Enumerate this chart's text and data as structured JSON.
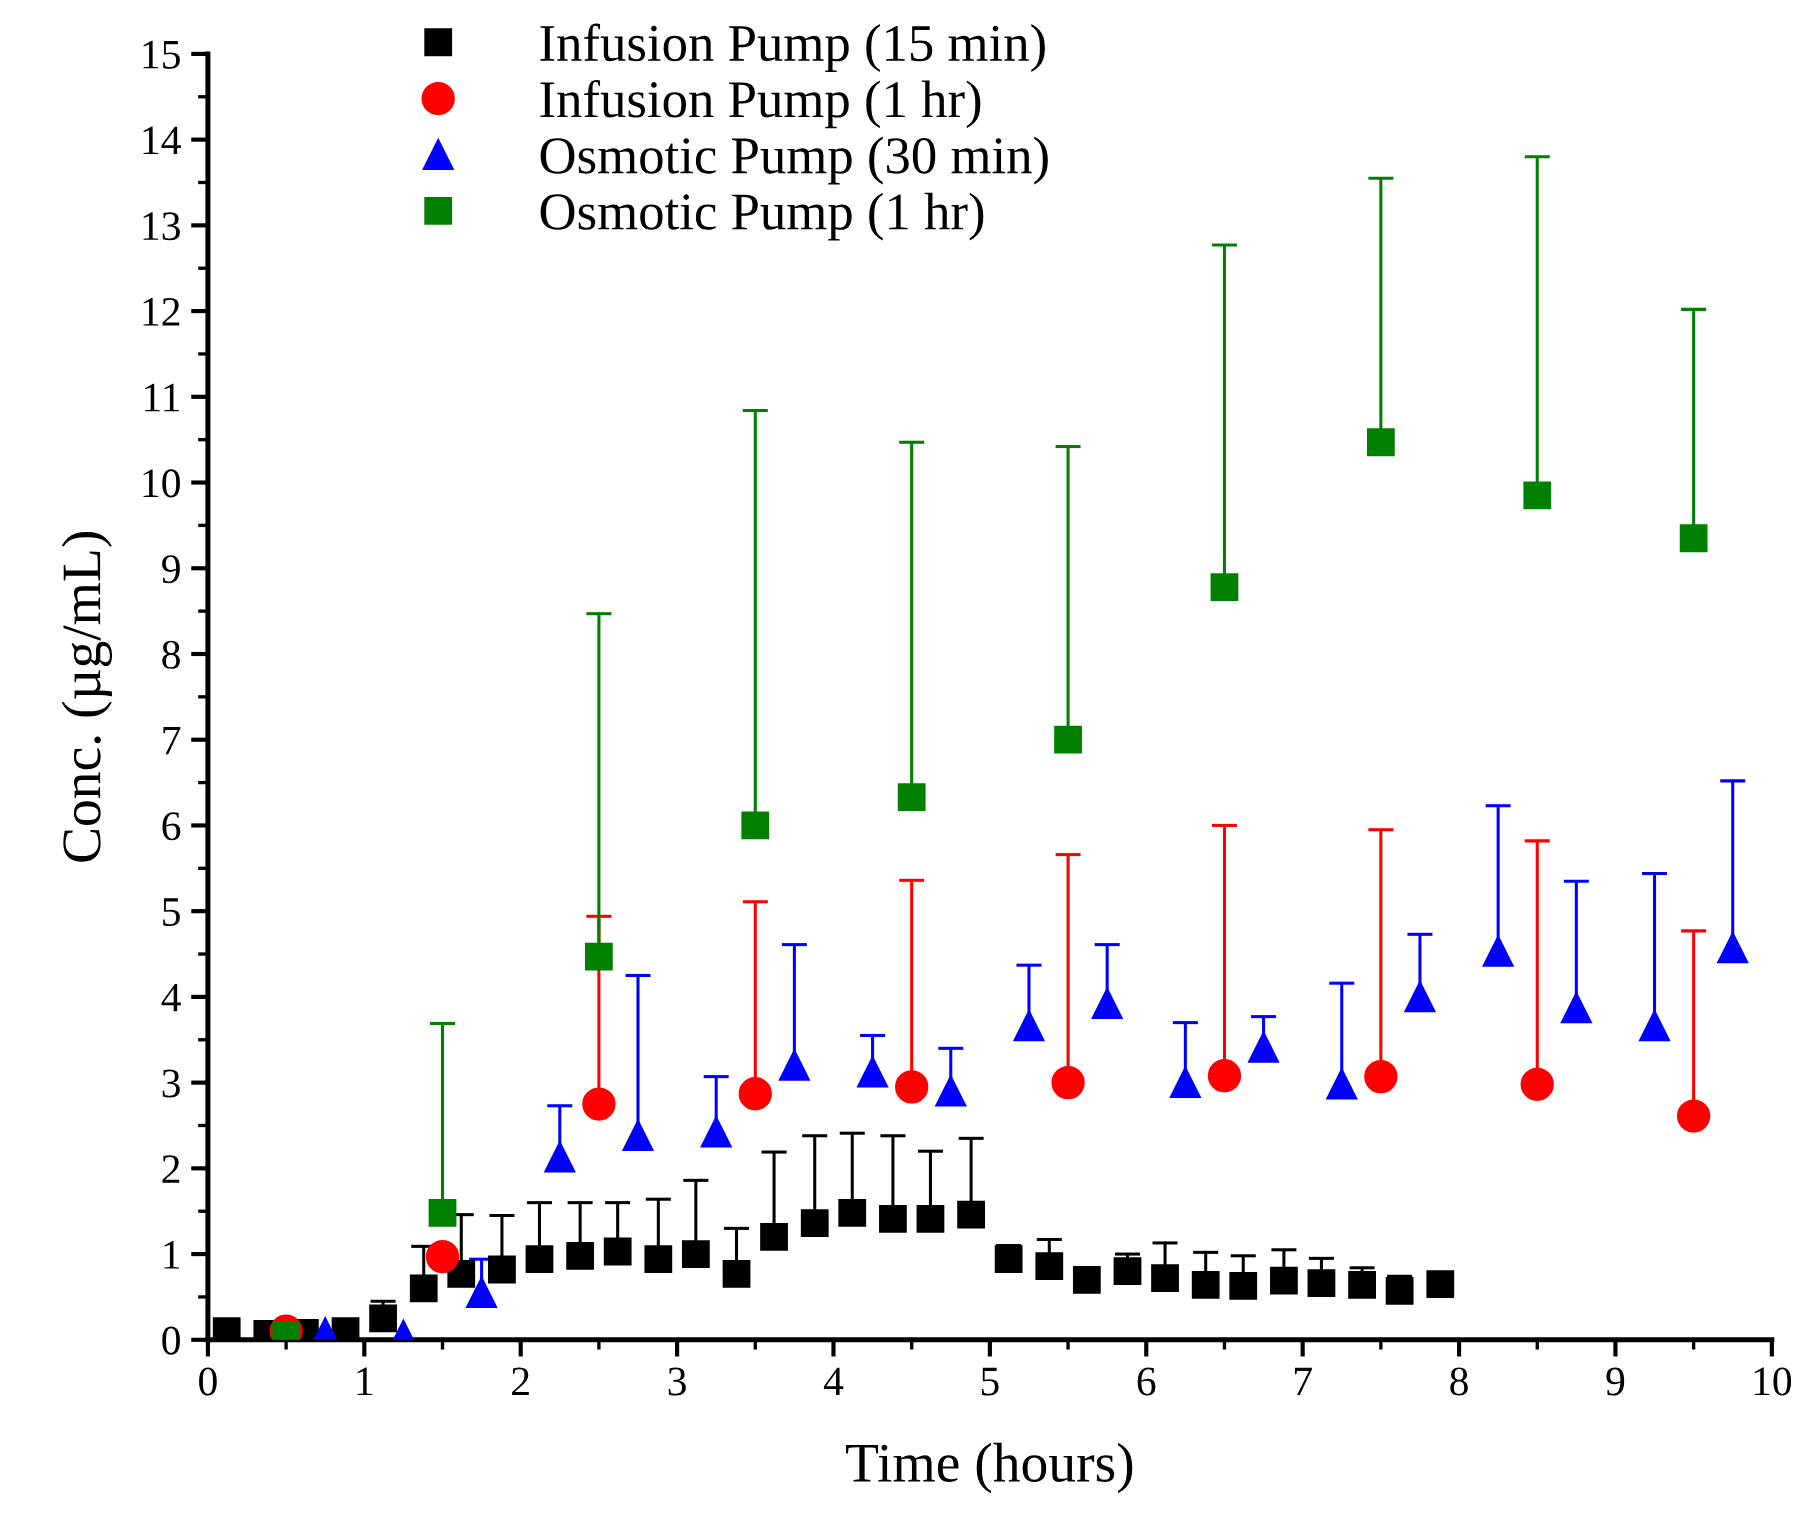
{
  "chart_data": {
    "type": "scatter",
    "xlabel": "Time (hours)",
    "ylabel": "Conc. (µg/mL)",
    "xlim": [
      0,
      10
    ],
    "xticks": [
      0,
      1,
      2,
      3,
      4,
      5,
      6,
      7,
      8,
      9,
      10
    ],
    "ylim": [
      0,
      15
    ],
    "yticks": [
      0,
      1,
      2,
      3,
      4,
      5,
      6,
      7,
      8,
      9,
      10,
      11,
      12,
      13,
      14,
      15
    ],
    "grid": false,
    "legend": "top left",
    "series": [
      {
        "name": "Infusion Pump (15 min)",
        "color": "#000000",
        "marker": "square",
        "x": [
          0.12,
          0.38,
          0.62,
          0.88,
          1.12,
          1.38,
          1.62,
          1.88,
          2.12,
          2.38,
          2.62,
          2.88,
          3.12,
          3.38,
          3.62,
          3.88,
          4.12,
          4.38,
          4.62,
          4.88,
          5.12,
          5.38,
          5.62,
          5.88,
          6.12,
          6.38,
          6.62,
          6.88,
          7.12,
          7.38,
          7.62,
          7.88
        ],
        "values": [
          0.1,
          0.07,
          0.08,
          0.1,
          0.25,
          0.6,
          0.77,
          0.82,
          0.94,
          0.98,
          1.03,
          0.94,
          1.0,
          0.77,
          1.2,
          1.36,
          1.48,
          1.41,
          1.41,
          1.46,
          0.94,
          0.86,
          0.7,
          0.8,
          0.72,
          0.64,
          0.63,
          0.69,
          0.66,
          0.64,
          0.57,
          0.65
        ],
        "errors": [
          null,
          null,
          null,
          null,
          [
            0.25,
            0.45
          ],
          [
            0.6,
            1.09
          ],
          [
            0.77,
            1.46
          ],
          [
            0.82,
            1.45
          ],
          [
            0.94,
            1.6
          ],
          [
            0.98,
            1.6
          ],
          [
            1.03,
            1.6
          ],
          [
            0.94,
            1.64
          ],
          [
            1.0,
            1.86
          ],
          [
            0.77,
            1.3
          ],
          [
            1.2,
            2.19
          ],
          [
            1.36,
            2.38
          ],
          [
            1.48,
            2.41
          ],
          [
            1.41,
            2.38
          ],
          [
            1.41,
            2.2
          ],
          [
            1.46,
            2.35
          ],
          [
            0.94,
            1.1
          ],
          [
            0.86,
            1.17
          ],
          null,
          [
            0.8,
            1.0
          ],
          [
            0.72,
            1.13
          ],
          [
            0.64,
            1.02
          ],
          [
            0.63,
            0.98
          ],
          [
            0.69,
            1.05
          ],
          [
            0.66,
            0.95
          ],
          [
            0.64,
            0.84
          ],
          [
            0.57,
            0.74
          ],
          null
        ]
      },
      {
        "name": "Infusion Pump (1 hr)",
        "color": "#ff0000",
        "marker": "circle",
        "x": [
          0.5,
          1.5,
          2.5,
          3.5,
          4.5,
          5.5,
          6.5,
          7.5,
          8.5,
          9.5
        ],
        "values": [
          0.1,
          0.97,
          2.75,
          2.87,
          2.95,
          3.0,
          3.08,
          3.07,
          2.98,
          2.61
        ],
        "errors": [
          null,
          null,
          [
            2.75,
            4.94
          ],
          [
            2.87,
            5.11
          ],
          [
            2.95,
            5.36
          ],
          [
            3.0,
            5.66
          ],
          [
            3.08,
            6.0
          ],
          [
            3.07,
            5.95
          ],
          [
            2.98,
            5.82
          ],
          [
            2.61,
            4.77
          ]
        ]
      },
      {
        "name": "Osmotic Pump (30 min)",
        "color": "#0000ff",
        "marker": "triangle",
        "x": [
          0.75,
          1.25,
          1.75,
          2.25,
          2.75,
          3.25,
          3.75,
          4.25,
          4.75,
          5.25,
          5.75,
          6.25,
          6.75,
          7.25,
          7.75,
          8.25,
          8.75,
          9.25,
          9.75
        ],
        "values": [
          0.08,
          0.05,
          0.55,
          2.13,
          2.38,
          2.42,
          3.2,
          3.12,
          2.9,
          3.66,
          3.92,
          3.0,
          3.41,
          2.98,
          4.0,
          4.53,
          3.87,
          3.66,
          4.57
        ],
        "errors": [
          null,
          null,
          [
            0.55,
            0.94
          ],
          [
            2.13,
            2.73
          ],
          [
            2.38,
            4.25
          ],
          [
            2.42,
            3.07
          ],
          [
            3.2,
            4.61
          ],
          [
            3.12,
            3.55
          ],
          [
            2.9,
            3.4
          ],
          [
            3.66,
            4.37
          ],
          [
            3.92,
            4.61
          ],
          [
            3.0,
            3.7
          ],
          [
            3.41,
            3.77
          ],
          [
            2.98,
            4.16
          ],
          [
            4.0,
            4.73
          ],
          [
            4.53,
            6.23
          ],
          [
            3.87,
            5.35
          ],
          [
            3.66,
            5.44
          ],
          [
            4.57,
            6.52
          ]
        ]
      },
      {
        "name": "Osmotic Pump (1 hr)",
        "color": "#008000",
        "marker": "square",
        "x": [
          0.5,
          1.5,
          2.5,
          3.5,
          4.5,
          5.5,
          6.5,
          7.5,
          8.5,
          9.5
        ],
        "values": [
          0.05,
          1.48,
          4.47,
          6.0,
          6.33,
          7.0,
          8.78,
          10.47,
          9.85,
          9.35
        ],
        "errors": [
          null,
          [
            1.48,
            3.69
          ],
          [
            4.47,
            8.47
          ],
          [
            6.0,
            10.84
          ],
          [
            6.33,
            10.47
          ],
          [
            7.0,
            10.42
          ],
          [
            8.78,
            12.77
          ],
          [
            10.47,
            13.55
          ],
          [
            9.85,
            13.8
          ],
          [
            9.35,
            12.02
          ]
        ]
      }
    ]
  }
}
